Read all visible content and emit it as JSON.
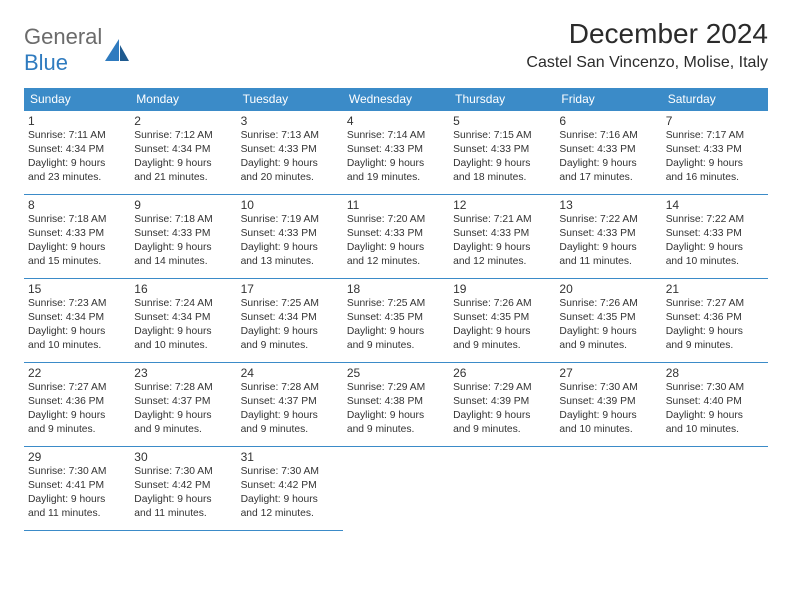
{
  "logo": {
    "part1": "General",
    "part2": "Blue"
  },
  "title": "December 2024",
  "location": "Castel San Vincenzo, Molise, Italy",
  "colors": {
    "header_bg": "#3b8bc8",
    "header_text": "#ffffff",
    "row_border": "#3b8bc8",
    "logo_gray": "#6b6b6b",
    "logo_blue": "#2f7bbf"
  },
  "day_headers": [
    "Sunday",
    "Monday",
    "Tuesday",
    "Wednesday",
    "Thursday",
    "Friday",
    "Saturday"
  ],
  "weeks": [
    [
      {
        "n": "1",
        "sr": "Sunrise: 7:11 AM",
        "ss": "Sunset: 4:34 PM",
        "d1": "Daylight: 9 hours",
        "d2": "and 23 minutes."
      },
      {
        "n": "2",
        "sr": "Sunrise: 7:12 AM",
        "ss": "Sunset: 4:34 PM",
        "d1": "Daylight: 9 hours",
        "d2": "and 21 minutes."
      },
      {
        "n": "3",
        "sr": "Sunrise: 7:13 AM",
        "ss": "Sunset: 4:33 PM",
        "d1": "Daylight: 9 hours",
        "d2": "and 20 minutes."
      },
      {
        "n": "4",
        "sr": "Sunrise: 7:14 AM",
        "ss": "Sunset: 4:33 PM",
        "d1": "Daylight: 9 hours",
        "d2": "and 19 minutes."
      },
      {
        "n": "5",
        "sr": "Sunrise: 7:15 AM",
        "ss": "Sunset: 4:33 PM",
        "d1": "Daylight: 9 hours",
        "d2": "and 18 minutes."
      },
      {
        "n": "6",
        "sr": "Sunrise: 7:16 AM",
        "ss": "Sunset: 4:33 PM",
        "d1": "Daylight: 9 hours",
        "d2": "and 17 minutes."
      },
      {
        "n": "7",
        "sr": "Sunrise: 7:17 AM",
        "ss": "Sunset: 4:33 PM",
        "d1": "Daylight: 9 hours",
        "d2": "and 16 minutes."
      }
    ],
    [
      {
        "n": "8",
        "sr": "Sunrise: 7:18 AM",
        "ss": "Sunset: 4:33 PM",
        "d1": "Daylight: 9 hours",
        "d2": "and 15 minutes."
      },
      {
        "n": "9",
        "sr": "Sunrise: 7:18 AM",
        "ss": "Sunset: 4:33 PM",
        "d1": "Daylight: 9 hours",
        "d2": "and 14 minutes."
      },
      {
        "n": "10",
        "sr": "Sunrise: 7:19 AM",
        "ss": "Sunset: 4:33 PM",
        "d1": "Daylight: 9 hours",
        "d2": "and 13 minutes."
      },
      {
        "n": "11",
        "sr": "Sunrise: 7:20 AM",
        "ss": "Sunset: 4:33 PM",
        "d1": "Daylight: 9 hours",
        "d2": "and 12 minutes."
      },
      {
        "n": "12",
        "sr": "Sunrise: 7:21 AM",
        "ss": "Sunset: 4:33 PM",
        "d1": "Daylight: 9 hours",
        "d2": "and 12 minutes."
      },
      {
        "n": "13",
        "sr": "Sunrise: 7:22 AM",
        "ss": "Sunset: 4:33 PM",
        "d1": "Daylight: 9 hours",
        "d2": "and 11 minutes."
      },
      {
        "n": "14",
        "sr": "Sunrise: 7:22 AM",
        "ss": "Sunset: 4:33 PM",
        "d1": "Daylight: 9 hours",
        "d2": "and 10 minutes."
      }
    ],
    [
      {
        "n": "15",
        "sr": "Sunrise: 7:23 AM",
        "ss": "Sunset: 4:34 PM",
        "d1": "Daylight: 9 hours",
        "d2": "and 10 minutes."
      },
      {
        "n": "16",
        "sr": "Sunrise: 7:24 AM",
        "ss": "Sunset: 4:34 PM",
        "d1": "Daylight: 9 hours",
        "d2": "and 10 minutes."
      },
      {
        "n": "17",
        "sr": "Sunrise: 7:25 AM",
        "ss": "Sunset: 4:34 PM",
        "d1": "Daylight: 9 hours",
        "d2": "and 9 minutes."
      },
      {
        "n": "18",
        "sr": "Sunrise: 7:25 AM",
        "ss": "Sunset: 4:35 PM",
        "d1": "Daylight: 9 hours",
        "d2": "and 9 minutes."
      },
      {
        "n": "19",
        "sr": "Sunrise: 7:26 AM",
        "ss": "Sunset: 4:35 PM",
        "d1": "Daylight: 9 hours",
        "d2": "and 9 minutes."
      },
      {
        "n": "20",
        "sr": "Sunrise: 7:26 AM",
        "ss": "Sunset: 4:35 PM",
        "d1": "Daylight: 9 hours",
        "d2": "and 9 minutes."
      },
      {
        "n": "21",
        "sr": "Sunrise: 7:27 AM",
        "ss": "Sunset: 4:36 PM",
        "d1": "Daylight: 9 hours",
        "d2": "and 9 minutes."
      }
    ],
    [
      {
        "n": "22",
        "sr": "Sunrise: 7:27 AM",
        "ss": "Sunset: 4:36 PM",
        "d1": "Daylight: 9 hours",
        "d2": "and 9 minutes."
      },
      {
        "n": "23",
        "sr": "Sunrise: 7:28 AM",
        "ss": "Sunset: 4:37 PM",
        "d1": "Daylight: 9 hours",
        "d2": "and 9 minutes."
      },
      {
        "n": "24",
        "sr": "Sunrise: 7:28 AM",
        "ss": "Sunset: 4:37 PM",
        "d1": "Daylight: 9 hours",
        "d2": "and 9 minutes."
      },
      {
        "n": "25",
        "sr": "Sunrise: 7:29 AM",
        "ss": "Sunset: 4:38 PM",
        "d1": "Daylight: 9 hours",
        "d2": "and 9 minutes."
      },
      {
        "n": "26",
        "sr": "Sunrise: 7:29 AM",
        "ss": "Sunset: 4:39 PM",
        "d1": "Daylight: 9 hours",
        "d2": "and 9 minutes."
      },
      {
        "n": "27",
        "sr": "Sunrise: 7:30 AM",
        "ss": "Sunset: 4:39 PM",
        "d1": "Daylight: 9 hours",
        "d2": "and 10 minutes."
      },
      {
        "n": "28",
        "sr": "Sunrise: 7:30 AM",
        "ss": "Sunset: 4:40 PM",
        "d1": "Daylight: 9 hours",
        "d2": "and 10 minutes."
      }
    ],
    [
      {
        "n": "29",
        "sr": "Sunrise: 7:30 AM",
        "ss": "Sunset: 4:41 PM",
        "d1": "Daylight: 9 hours",
        "d2": "and 11 minutes."
      },
      {
        "n": "30",
        "sr": "Sunrise: 7:30 AM",
        "ss": "Sunset: 4:42 PM",
        "d1": "Daylight: 9 hours",
        "d2": "and 11 minutes."
      },
      {
        "n": "31",
        "sr": "Sunrise: 7:30 AM",
        "ss": "Sunset: 4:42 PM",
        "d1": "Daylight: 9 hours",
        "d2": "and 12 minutes."
      },
      null,
      null,
      null,
      null
    ]
  ]
}
